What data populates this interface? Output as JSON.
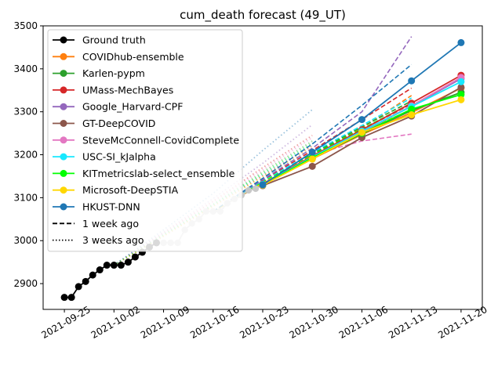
{
  "chart_data": {
    "type": "line",
    "title": "cum_death forecast (49_UT)",
    "xlabel": "",
    "ylabel": "",
    "ylim": [
      2840,
      3500
    ],
    "yticks": [
      2900,
      3000,
      3100,
      3200,
      3300,
      3400,
      3500
    ],
    "xticks": [
      "2021-09-25",
      "2021-10-02",
      "2021-10-09",
      "2021-10-16",
      "2021-10-23",
      "2021-10-30",
      "2021-11-06",
      "2021-11-13",
      "2021-11-20"
    ],
    "xlim_day": [
      -3,
      59
    ],
    "ground_truth": {
      "name": "Ground truth",
      "color": "#000000",
      "days": [
        0,
        1,
        2,
        3,
        4,
        5,
        6,
        7,
        8,
        9,
        10,
        11,
        12,
        13
      ],
      "values": [
        2868,
        2868,
        2893,
        2905,
        2920,
        2932,
        2943,
        2943,
        2943,
        2950,
        2962,
        2973,
        2985,
        2995
      ]
    },
    "faded_truth": {
      "color": "#c8c8c8",
      "days": [
        13,
        14,
        15,
        16,
        17,
        18,
        19,
        20,
        21,
        22,
        23,
        24,
        25,
        26,
        27,
        28
      ],
      "values": [
        2995,
        2995,
        2995,
        2995,
        3025,
        3040,
        3050,
        3068,
        3068,
        3068,
        3087,
        3097,
        3106,
        3117,
        3121,
        3129
      ]
    },
    "series": [
      {
        "name": "COVIDhub-ensemble",
        "color": "#ff7f0e",
        "days": [
          28,
          35,
          42,
          49,
          56
        ],
        "values": [
          3130,
          3190,
          3247,
          3298,
          3355
        ]
      },
      {
        "name": "Karlen-pypm",
        "color": "#2ca02c",
        "days": [
          28,
          35,
          42,
          49,
          56
        ],
        "values": [
          3131,
          3192,
          3249,
          3303,
          3345
        ]
      },
      {
        "name": "UMass-MechBayes",
        "color": "#d62728",
        "days": [
          28,
          35,
          42,
          49,
          56
        ],
        "values": [
          3132,
          3197,
          3258,
          3320,
          3385
        ]
      },
      {
        "name": "Google_Harvard-CPF",
        "color": "#9467bd",
        "days": [
          28,
          35,
          42,
          49,
          56
        ],
        "values": [
          3131,
          3193,
          3252,
          3313,
          3377
        ]
      },
      {
        "name": "GT-DeepCOVID",
        "color": "#8c564b",
        "days": [
          28,
          35,
          42,
          49,
          56
        ],
        "values": [
          3128,
          3173,
          3240,
          3290,
          3357
        ]
      },
      {
        "name": "SteveMcConnell-CovidComplete",
        "color": "#e377c2",
        "days": [
          28,
          35,
          42,
          49,
          56
        ],
        "values": [
          3131,
          3194,
          3253,
          3314,
          3380
        ]
      },
      {
        "name": "USC-SI_kJalpha",
        "color": "#17e8ff",
        "days": [
          28,
          35,
          42,
          49,
          56
        ],
        "values": [
          3131,
          3195,
          3255,
          3312,
          3370
        ]
      },
      {
        "name": "KITmetricslab-select_ensemble",
        "color": "#00ff00",
        "days": [
          28,
          35,
          42,
          49,
          56
        ],
        "values": [
          3130,
          3193,
          3250,
          3306,
          3340
        ]
      },
      {
        "name": "Microsoft-DeepSTIA",
        "color": "#ffd700",
        "days": [
          28,
          35,
          42,
          49,
          56
        ],
        "values": [
          3129,
          3190,
          3252,
          3293,
          3328
        ]
      },
      {
        "name": "HKUST-DNN",
        "color": "#1f77b4",
        "days": [
          28,
          35,
          42,
          49,
          56
        ],
        "values": [
          3130,
          3206,
          3282,
          3372,
          3461
        ]
      }
    ],
    "one_week_ago": [
      {
        "model": "COVIDhub-ensemble",
        "color": "#ff7f0e",
        "days": [
          21,
          28,
          35,
          42,
          49
        ],
        "values": [
          3068,
          3135,
          3200,
          3262,
          3338
        ]
      },
      {
        "model": "Karlen-pypm",
        "color": "#2ca02c",
        "days": [
          21,
          28,
          35,
          42,
          49
        ],
        "values": [
          3068,
          3137,
          3202,
          3265,
          3325
        ]
      },
      {
        "model": "UMass-MechBayes",
        "color": "#d62728",
        "days": [
          21,
          28,
          35,
          42,
          49
        ],
        "values": [
          3068,
          3140,
          3210,
          3282,
          3355
        ]
      },
      {
        "model": "Google_Harvard-CPF",
        "color": "#9467bd",
        "days": [
          21,
          28,
          35,
          42,
          49
        ],
        "values": [
          3068,
          3142,
          3215,
          3300,
          3475
        ]
      },
      {
        "model": "GT-DeepCOVID",
        "color": "#8c564b",
        "days": [
          21,
          28,
          35,
          42,
          49
        ],
        "values": [
          3068,
          3133,
          3195,
          3258,
          3318
        ]
      },
      {
        "model": "SteveMcConnell-CovidComplete",
        "color": "#e377c2",
        "days": [
          21,
          28,
          35,
          42,
          49
        ],
        "values": [
          3068,
          3135,
          3200,
          3232,
          3248
        ]
      },
      {
        "model": "USC-SI_kJalpha",
        "color": "#17e8ff",
        "days": [
          21,
          28,
          35,
          42,
          49
        ],
        "values": [
          3068,
          3138,
          3205,
          3268,
          3332
        ]
      },
      {
        "model": "KITmetricslab-select_ensemble",
        "color": "#00ff00",
        "days": [
          21,
          28,
          35,
          42,
          49
        ],
        "values": [
          3068,
          3136,
          3200,
          3260,
          3320
        ]
      },
      {
        "model": "Microsoft-DeepSTIA",
        "color": "#ffd700",
        "days": [
          21,
          28,
          35,
          42,
          49
        ],
        "values": [
          3068,
          3134,
          3198,
          3255,
          3305
        ]
      },
      {
        "model": "HKUST-DNN",
        "color": "#1f77b4",
        "days": [
          21,
          28,
          35,
          42,
          49
        ],
        "values": [
          3068,
          3145,
          3225,
          3315,
          3410
        ]
      }
    ],
    "three_weeks_ago": [
      {
        "model": "COVIDhub-ensemble",
        "color": "#ff7f0e",
        "days": [
          7,
          14,
          21,
          28,
          35
        ],
        "values": [
          2943,
          3010,
          3080,
          3150,
          3220
        ]
      },
      {
        "model": "Karlen-pypm",
        "color": "#2ca02c",
        "days": [
          7,
          14,
          21,
          28,
          35
        ],
        "values": [
          2943,
          3015,
          3085,
          3160,
          3232
        ]
      },
      {
        "model": "UMass-MechBayes",
        "color": "#d62728",
        "days": [
          7,
          14,
          21,
          28,
          35
        ],
        "values": [
          2943,
          3018,
          3092,
          3170,
          3245
        ]
      },
      {
        "model": "Google_Harvard-CPF",
        "color": "#9467bd",
        "days": [
          7,
          14,
          21,
          28,
          35
        ],
        "values": [
          2943,
          3020,
          3098,
          3180,
          3270
        ]
      },
      {
        "model": "GT-DeepCOVID",
        "color": "#8c564b",
        "days": [
          7,
          14,
          21,
          28,
          35
        ],
        "values": [
          2943,
          3012,
          3082,
          3152,
          3222
        ]
      },
      {
        "model": "SteveMcConnell-CovidComplete",
        "color": "#e377c2",
        "days": [
          7,
          14,
          21,
          28,
          35
        ],
        "values": [
          2943,
          3017,
          3090,
          3165,
          3240
        ]
      },
      {
        "model": "USC-SI_kJalpha",
        "color": "#17e8ff",
        "days": [
          7,
          14,
          21,
          28,
          35
        ],
        "values": [
          2943,
          3014,
          3083,
          3155,
          3225
        ]
      },
      {
        "model": "KITmetricslab-select_ensemble",
        "color": "#00ff00",
        "days": [
          7,
          14,
          21,
          28,
          35
        ],
        "values": [
          2943,
          3013,
          3084,
          3156,
          3228
        ]
      },
      {
        "model": "Microsoft-DeepSTIA",
        "color": "#ffd700",
        "days": [
          7,
          14,
          21,
          28,
          35
        ],
        "values": [
          2943,
          3011,
          3080,
          3148,
          3215
        ]
      },
      {
        "model": "HKUST-DNN",
        "color": "#1f77b4",
        "days": [
          7,
          14,
          21,
          28,
          35
        ],
        "values": [
          2943,
          3025,
          3110,
          3210,
          3305
        ]
      }
    ],
    "legend": {
      "placement": "upper-left",
      "entries": [
        {
          "label": "Ground truth",
          "color": "#000000",
          "style": "marker"
        },
        {
          "label": "COVIDhub-ensemble",
          "color": "#ff7f0e",
          "style": "marker"
        },
        {
          "label": "Karlen-pypm",
          "color": "#2ca02c",
          "style": "marker"
        },
        {
          "label": "UMass-MechBayes",
          "color": "#d62728",
          "style": "marker"
        },
        {
          "label": "Google_Harvard-CPF",
          "color": "#9467bd",
          "style": "marker"
        },
        {
          "label": "GT-DeepCOVID",
          "color": "#8c564b",
          "style": "marker"
        },
        {
          "label": "SteveMcConnell-CovidComplete",
          "color": "#e377c2",
          "style": "marker"
        },
        {
          "label": "USC-SI_kJalpha",
          "color": "#17e8ff",
          "style": "marker"
        },
        {
          "label": "KITmetricslab-select_ensemble",
          "color": "#00ff00",
          "style": "marker"
        },
        {
          "label": "Microsoft-DeepSTIA",
          "color": "#ffd700",
          "style": "marker"
        },
        {
          "label": "HKUST-DNN",
          "color": "#1f77b4",
          "style": "marker"
        },
        {
          "label": "1 week ago",
          "color": "#000000",
          "style": "dashed"
        },
        {
          "label": "3 weeks ago",
          "color": "#000000",
          "style": "dotted"
        }
      ]
    }
  }
}
